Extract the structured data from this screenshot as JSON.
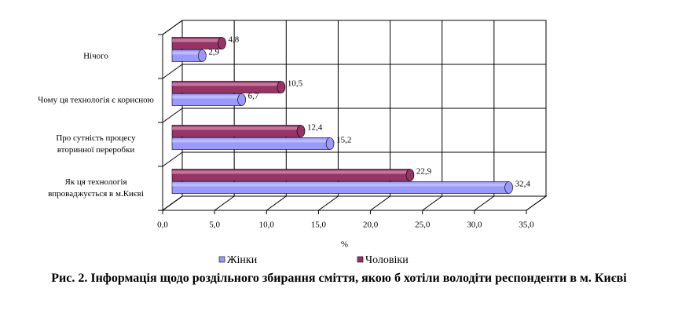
{
  "chart_data": {
    "type": "bar",
    "orientation": "horizontal",
    "categories": [
      "Нічого",
      "Чому ця технологія є корисною",
      "Про сутність процесу вторинної переробки",
      "Як ця технологія впроваджується в м.Києві"
    ],
    "series": [
      {
        "name": "Жінки",
        "color": "#9999ff",
        "values": [
          2.9,
          6.7,
          15.2,
          32.4
        ],
        "value_labels": [
          "2,9",
          "6,7",
          "15,2",
          "32,4"
        ]
      },
      {
        "name": "Чоловіки",
        "color": "#993366",
        "values": [
          4.8,
          10.5,
          12.4,
          22.9
        ],
        "value_labels": [
          "4,8",
          "10,5",
          "12,4",
          "22,9"
        ]
      }
    ],
    "xlim": [
      0,
      35
    ],
    "xticks": [
      {
        "value": 0,
        "label": "0,0"
      },
      {
        "value": 5,
        "label": "5,0"
      },
      {
        "value": 10,
        "label": "10,0"
      },
      {
        "value": 15,
        "label": "15,0"
      },
      {
        "value": 20,
        "label": "20,0"
      },
      {
        "value": 25,
        "label": "25,0"
      },
      {
        "value": 30,
        "label": "30,0"
      },
      {
        "value": 35,
        "label": "35,0"
      }
    ],
    "x_label": "%",
    "grid": true,
    "legend": "bottom",
    "caption": "Рис. 2. Інформація щодо роздільного збирання сміття, якою б хотіли володіти респонденти в м. Києві"
  }
}
